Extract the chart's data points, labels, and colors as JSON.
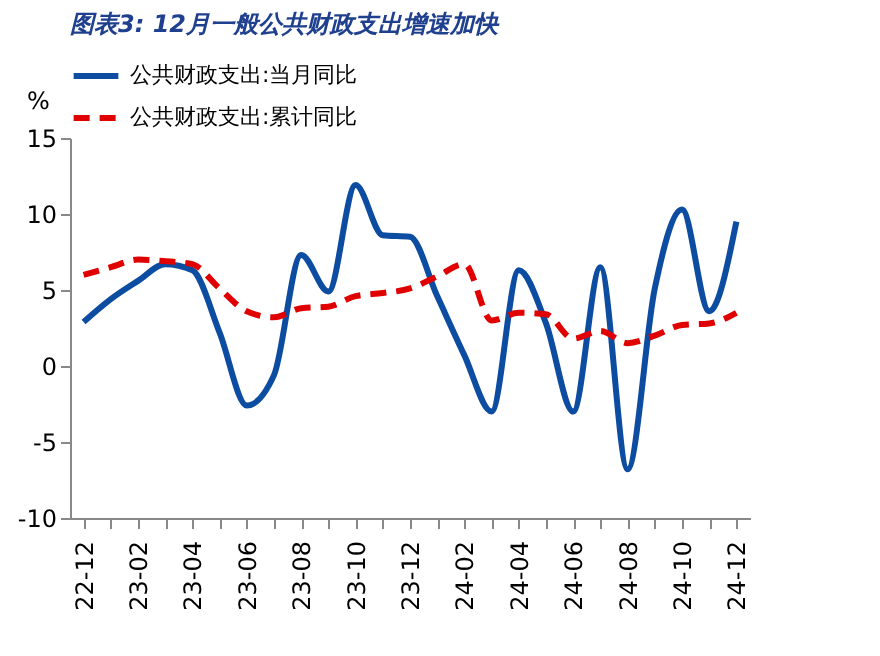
{
  "chart_data": {
    "type": "line",
    "title": "图表3: 12月一般公共财政支出增速加快",
    "ylabel": "%",
    "categories": [
      "22-12",
      null,
      "23-02",
      null,
      "23-04",
      null,
      "23-06",
      null,
      "23-08",
      null,
      "23-10",
      null,
      "23-12",
      null,
      "24-02",
      null,
      "24-04",
      null,
      "24-06",
      null,
      "24-08",
      null,
      "24-10",
      null,
      "24-12"
    ],
    "series": [
      {
        "name": "公共财政支出:当月同比",
        "color": "#0c4da2",
        "line_style": "solid",
        "values": [
          2.9,
          4.4,
          5.6,
          6.7,
          6.3,
          2.2,
          -2.6,
          -0.6,
          7.3,
          4.9,
          11.9,
          8.6,
          8.5,
          4.6,
          0.7,
          -3.0,
          6.3,
          2.8,
          -3.0,
          6.5,
          -6.8,
          5.1,
          10.3,
          3.6,
          9.5
        ]
      },
      {
        "name": "公共财政支出:累计同比",
        "color": "#e00000",
        "line_style": "dashed",
        "values": [
          6.0,
          6.5,
          7.0,
          6.9,
          6.7,
          5.1,
          3.6,
          3.2,
          3.8,
          3.9,
          4.6,
          4.8,
          5.1,
          5.9,
          6.7,
          3.0,
          3.5,
          3.4,
          1.8,
          2.3,
          1.5,
          2.0,
          2.7,
          2.8,
          3.5
        ]
      }
    ],
    "ylim": [
      -10,
      15
    ],
    "yticks": [
      -10,
      -5,
      0,
      5,
      10,
      15
    ],
    "grid": false,
    "legend": "top",
    "marker": "none"
  }
}
